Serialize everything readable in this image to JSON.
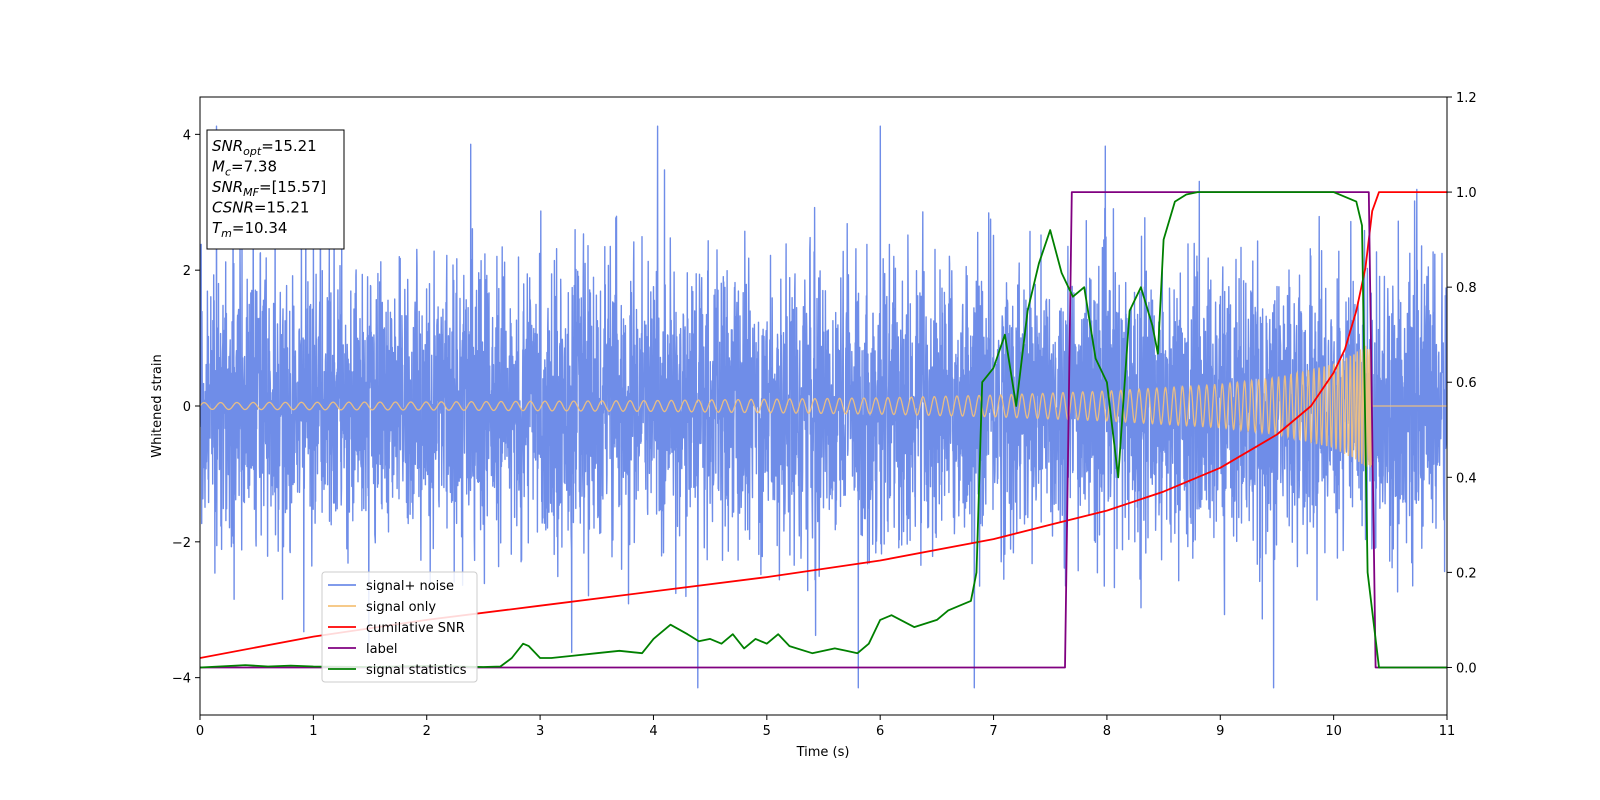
{
  "chart_data": {
    "type": "line",
    "xlabel": "Time (s)",
    "ylabel": "Whitened strain",
    "xlim": [
      0,
      11
    ],
    "ylim_left": [
      -4.55,
      4.55
    ],
    "ylim_right": [
      -0.1,
      1.2
    ],
    "x_ticks": [
      "0",
      "1",
      "2",
      "3",
      "4",
      "5",
      "6",
      "7",
      "8",
      "9",
      "10",
      "11"
    ],
    "y_ticks_left": [
      "4",
      "2",
      "0",
      "−2",
      "−4"
    ],
    "y_ticks_right": [
      "1.2",
      "1.0",
      "0.8",
      "0.6",
      "0.4",
      "0.2",
      "0.0"
    ],
    "legend_position": "lower-left",
    "info_box": [
      {
        "base": "SNR",
        "sub": "opt",
        "value": "=15.21"
      },
      {
        "base": "M",
        "sub": "c",
        "value": "=7.38"
      },
      {
        "base": "SNR",
        "sub": "MF",
        "value": "=[15.57]"
      },
      {
        "base": "CSNR",
        "sub": "",
        "value": "=15.21"
      },
      {
        "base": "T",
        "sub": "m",
        "value": "=10.34"
      }
    ],
    "series": [
      {
        "name": "signal+ noise",
        "color": "#6f8de8",
        "axis": "left",
        "kind": "noise",
        "amplitude_sigma": 1.0,
        "extreme_range": [
          -4.15,
          4.12
        ]
      },
      {
        "name": "signal only",
        "color": "#f5c27a",
        "axis": "left",
        "kind": "chirp",
        "envelope": {
          "x": [
            0,
            2,
            4,
            6,
            7,
            8,
            9,
            9.5,
            10,
            10.2,
            10.34
          ],
          "y": [
            0.05,
            0.06,
            0.08,
            0.12,
            0.16,
            0.22,
            0.32,
            0.42,
            0.62,
            0.8,
            0.95
          ]
        },
        "end_time": 10.34
      },
      {
        "name": "cumilative SNR",
        "color": "#ff0000",
        "axis": "right",
        "x": [
          0,
          1,
          2,
          3,
          4,
          5,
          6,
          7,
          7.5,
          8,
          8.5,
          9,
          9.5,
          9.8,
          10,
          10.1,
          10.2,
          10.28,
          10.34,
          10.4,
          11
        ],
        "y": [
          0.02,
          0.065,
          0.1,
          0.13,
          0.16,
          0.19,
          0.225,
          0.27,
          0.3,
          0.33,
          0.37,
          0.42,
          0.49,
          0.55,
          0.62,
          0.67,
          0.75,
          0.84,
          0.96,
          1.0,
          1.0
        ]
      },
      {
        "name": "label",
        "color": "#800080",
        "axis": "right",
        "x": [
          0,
          7.63,
          7.69,
          10.31,
          10.37,
          11
        ],
        "y": [
          0,
          0,
          1,
          1,
          0,
          0
        ]
      },
      {
        "name": "signal statistics",
        "color": "#008000",
        "axis": "right",
        "x": [
          0,
          0.4,
          0.6,
          0.8,
          1.0,
          1.5,
          2.0,
          2.5,
          2.65,
          2.75,
          2.85,
          2.9,
          3.0,
          3.1,
          3.3,
          3.5,
          3.7,
          3.9,
          4.0,
          4.1,
          4.15,
          4.3,
          4.4,
          4.5,
          4.6,
          4.7,
          4.8,
          4.9,
          5.0,
          5.1,
          5.2,
          5.4,
          5.6,
          5.7,
          5.8,
          5.9,
          6.0,
          6.1,
          6.3,
          6.5,
          6.6,
          6.7,
          6.8,
          6.85,
          6.9,
          7.0,
          7.1,
          7.2,
          7.3,
          7.4,
          7.5,
          7.6,
          7.7,
          7.8,
          7.9,
          8.0,
          8.1,
          8.2,
          8.3,
          8.4,
          8.45,
          8.5,
          8.6,
          8.7,
          8.8,
          9.0,
          9.5,
          10.0,
          10.2,
          10.25,
          10.3,
          10.4,
          10.6,
          11
        ],
        "y": [
          0,
          0.005,
          0.002,
          0.004,
          0.002,
          0.001,
          0.003,
          0.001,
          0.002,
          0.02,
          0.05,
          0.045,
          0.02,
          0.02,
          0.025,
          0.03,
          0.035,
          0.03,
          0.06,
          0.08,
          0.09,
          0.07,
          0.055,
          0.06,
          0.05,
          0.07,
          0.04,
          0.06,
          0.05,
          0.07,
          0.045,
          0.03,
          0.04,
          0.035,
          0.03,
          0.05,
          0.1,
          0.11,
          0.085,
          0.1,
          0.12,
          0.13,
          0.14,
          0.2,
          0.6,
          0.63,
          0.7,
          0.55,
          0.75,
          0.85,
          0.92,
          0.83,
          0.78,
          0.8,
          0.65,
          0.6,
          0.4,
          0.75,
          0.8,
          0.72,
          0.66,
          0.9,
          0.98,
          0.995,
          1.0,
          1.0,
          1.0,
          1.0,
          0.98,
          0.93,
          0.2,
          0.0,
          0.0,
          0.0
        ]
      }
    ]
  }
}
